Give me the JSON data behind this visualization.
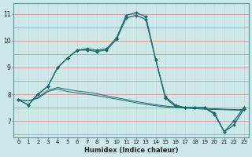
{
  "xlabel": "Humidex (Indice chaleur)",
  "background_color": "#cce8e8",
  "grid_color_h": "#e08080",
  "grid_color_v": "#c8dada",
  "line_color": "#1a6b6b",
  "x_values": [
    0,
    1,
    2,
    3,
    4,
    5,
    6,
    7,
    8,
    9,
    10,
    11,
    12,
    13,
    14,
    15,
    16,
    17,
    18,
    19,
    20,
    21,
    22,
    23
  ],
  "flat_series": [
    [
      7.8,
      7.75,
      7.85,
      8.1,
      8.2,
      8.1,
      8.05,
      8.0,
      7.95,
      7.88,
      7.82,
      7.75,
      7.68,
      7.62,
      7.57,
      7.52,
      7.5,
      7.48,
      7.46,
      7.44,
      7.43,
      7.42,
      7.41,
      7.4
    ],
    [
      7.8,
      7.75,
      7.88,
      8.15,
      8.25,
      8.18,
      8.12,
      8.08,
      8.02,
      7.94,
      7.87,
      7.8,
      7.73,
      7.67,
      7.61,
      7.56,
      7.53,
      7.51,
      7.49,
      7.47,
      7.46,
      7.44,
      7.43,
      7.42
    ]
  ],
  "main_series": [
    [
      7.8,
      7.6,
      8.0,
      8.3,
      9.0,
      9.35,
      9.65,
      9.65,
      9.6,
      9.65,
      10.05,
      10.85,
      10.95,
      10.8,
      9.3,
      7.85,
      7.55,
      7.5,
      7.5,
      7.5,
      7.25,
      6.6,
      6.85,
      7.45
    ],
    [
      7.8,
      7.6,
      8.0,
      8.3,
      9.0,
      9.35,
      9.65,
      9.7,
      9.65,
      9.7,
      10.1,
      10.95,
      11.05,
      10.9,
      9.3,
      7.9,
      7.6,
      7.5,
      7.5,
      7.5,
      7.3,
      6.6,
      7.0,
      7.5
    ]
  ],
  "ylim": [
    6.4,
    11.4
  ],
  "yticks": [
    7,
    8,
    9,
    10,
    11
  ],
  "xticks": [
    0,
    1,
    2,
    3,
    4,
    5,
    6,
    7,
    8,
    9,
    10,
    11,
    12,
    13,
    14,
    15,
    16,
    17,
    18,
    19,
    20,
    21,
    22,
    23
  ]
}
